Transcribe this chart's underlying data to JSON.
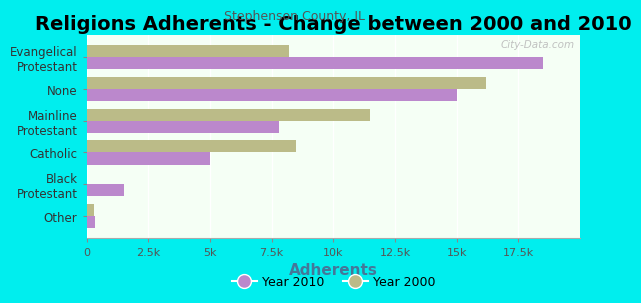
{
  "title": "Religions Adherents - Change between 2000 and 2010",
  "subtitle": "Stephenson County, IL",
  "xlabel": "Adherents",
  "categories": [
    "Evangelical\nProtestant",
    "None",
    "Mainline\nProtestant",
    "Catholic",
    "Black\nProtestant",
    "Other"
  ],
  "year2010": [
    18500,
    15000,
    7800,
    5000,
    1500,
    350
  ],
  "year2000": [
    8200,
    16200,
    11500,
    8500,
    0,
    300
  ],
  "color_2010": "#BB88CC",
  "color_2000": "#BBBB88",
  "background_outer": "#00EEEE",
  "background_plot_top": "#E0F5E0",
  "background_plot_bottom": "#F5FFF5",
  "xlim": [
    0,
    20000
  ],
  "xticks": [
    0,
    2500,
    5000,
    7500,
    10000,
    12500,
    15000,
    17500
  ],
  "xticklabels": [
    "0",
    "2.5k",
    "5k",
    "7.5k",
    "10k",
    "12.5k",
    "15k",
    "17.5k"
  ],
  "bar_height": 0.38,
  "title_fontsize": 14,
  "subtitle_fontsize": 9,
  "xlabel_fontsize": 11,
  "tick_fontsize": 8,
  "ytick_fontsize": 8.5,
  "legend_fontsize": 9,
  "watermark": "City-Data.com"
}
